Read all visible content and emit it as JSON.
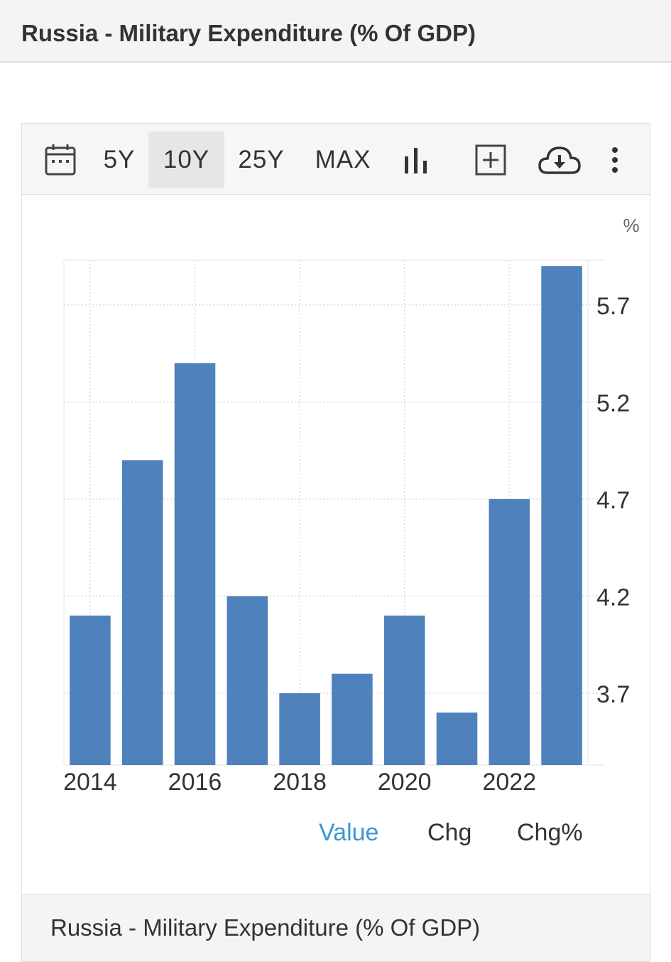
{
  "header": {
    "title": "Russia - Military Expenditure (% Of GDP)"
  },
  "toolbar": {
    "calendar_icon": "calendar-icon",
    "ranges": [
      "5Y",
      "10Y",
      "25Y",
      "MAX"
    ],
    "selected_range": "10Y",
    "chart_type_icon": "bar-chart-icon",
    "add_icon": "plus-box-icon",
    "download_icon": "cloud-download-icon",
    "more_icon": "vertical-dots-icon"
  },
  "chart_data": {
    "type": "bar",
    "categories": [
      "2014",
      "2015",
      "2016",
      "2017",
      "2018",
      "2019",
      "2020",
      "2021",
      "2022",
      "2023"
    ],
    "values": [
      4.1,
      4.9,
      5.4,
      4.2,
      3.7,
      3.8,
      4.1,
      3.6,
      4.7,
      5.9
    ],
    "x_tick_labels": [
      "2014",
      "2016",
      "2018",
      "2020",
      "2022"
    ],
    "y_tick_labels": [
      "3.7",
      "4.2",
      "4.7",
      "5.2",
      "5.7"
    ],
    "y_unit": "%",
    "ylim": [
      3.33,
      5.93
    ],
    "grid": true,
    "y_axis_side": "right",
    "bar_color": "#4f81bd"
  },
  "legend": {
    "items": [
      "Value",
      "Chg",
      "Chg%"
    ],
    "active": "Value",
    "active_color": "#3a97d4"
  },
  "footer": {
    "title": "Russia - Military Expenditure (% Of GDP)"
  }
}
